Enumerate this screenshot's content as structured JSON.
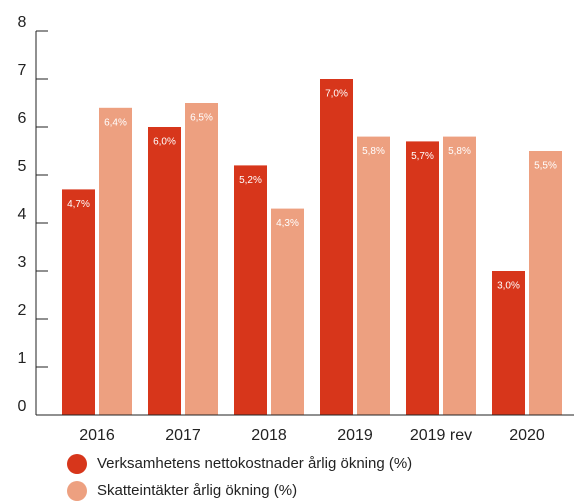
{
  "chart_data": {
    "type": "bar",
    "categories": [
      "2016",
      "2017",
      "2018",
      "2019",
      "2019 rev",
      "2020"
    ],
    "series": [
      {
        "name": "Verksamhetens nettokostnader årlig ökning (%)",
        "color": "#d7361b",
        "values": [
          4.7,
          6.0,
          5.2,
          7.0,
          5.7,
          3.0
        ],
        "value_labels": [
          "4,7%",
          "6,0%",
          "5,2%",
          "7,0%",
          "5,7%",
          "3,0%"
        ]
      },
      {
        "name": "Skatteintäkter årlig ökning (%)",
        "color": "#eda080",
        "values": [
          6.4,
          6.5,
          4.3,
          5.8,
          5.8,
          5.5
        ],
        "value_labels": [
          "6,4%",
          "6,5%",
          "4,3%",
          "5,8%",
          "5,8%",
          "5,5%"
        ]
      }
    ],
    "ylim": [
      0,
      8
    ],
    "yticks": [
      0,
      1,
      2,
      3,
      4,
      5,
      6,
      7,
      8
    ]
  }
}
